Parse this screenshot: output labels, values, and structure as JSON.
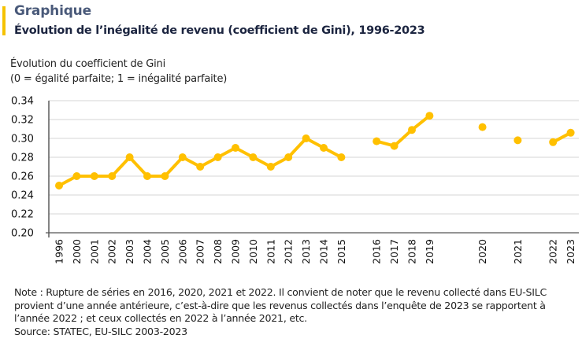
{
  "header": {
    "kicker": "Graphique",
    "title": "Évolution de l’inégalité de revenu (coefficient de Gini), 1996-2023",
    "kicker_color": "#4a5a7a",
    "title_color": "#1c2540",
    "accent_color": "#f5c200"
  },
  "y_caption": {
    "line1": "Évolution du coefficient de Gini",
    "line2": "(0 = égalité parfaite; 1 = inégalité parfaite)"
  },
  "chart_data": {
    "type": "line",
    "title": "Évolution de l’inégalité de revenu (coefficient de Gini), 1996-2023",
    "xlabel": "",
    "ylabel": "Évolution du coefficient de Gini (0 = égalité parfaite; 1 = inégalité parfaite)",
    "ylim": [
      0.2,
      0.34
    ],
    "yticks": [
      "0.20",
      "0.22",
      "0.24",
      "0.26",
      "0.28",
      "0.30",
      "0.32",
      "0.34"
    ],
    "grid": true,
    "legend": "none",
    "line_color": "#ffc000",
    "categories": [
      "1996",
      "2000",
      "2001",
      "2002",
      "2003",
      "2004",
      "2005",
      "2006",
      "2007",
      "2008",
      "2009",
      "2010",
      "2011",
      "2012",
      "2013",
      "2014",
      "2015",
      "2016",
      "2017",
      "2018",
      "2019",
      "2020",
      "2021",
      "2022",
      "2023"
    ],
    "slots": [
      0,
      1,
      2,
      3,
      4,
      5,
      6,
      7,
      8,
      9,
      10,
      11,
      12,
      13,
      14,
      15,
      16,
      18,
      19,
      20,
      21,
      24,
      26,
      28,
      29
    ],
    "series": [
      {
        "name": "Coefficient de Gini",
        "segments": [
          {
            "x": [
              "1996",
              "2000",
              "2001",
              "2002",
              "2003",
              "2004",
              "2005",
              "2006",
              "2007",
              "2008",
              "2009",
              "2010",
              "2011",
              "2012",
              "2013",
              "2014",
              "2015"
            ],
            "values": [
              0.25,
              0.26,
              0.26,
              0.26,
              0.28,
              0.26,
              0.26,
              0.28,
              0.27,
              0.28,
              0.29,
              0.28,
              0.27,
              0.28,
              0.3,
              0.29,
              0.28
            ]
          },
          {
            "x": [
              "2016",
              "2017",
              "2018",
              "2019"
            ],
            "values": [
              0.297,
              0.292,
              0.309,
              0.324
            ]
          },
          {
            "x": [
              "2020"
            ],
            "values": [
              0.312
            ]
          },
          {
            "x": [
              "2021"
            ],
            "values": [
              0.298
            ]
          },
          {
            "x": [
              "2022",
              "2023"
            ],
            "values": [
              0.296,
              0.306
            ]
          }
        ]
      }
    ]
  },
  "note": {
    "line1": "Note : Rupture de séries en 2016, 2020, 2021 et 2022. Il convient de noter que le revenu collecté dans EU-SILC",
    "line2": "provient d’une année antérieure, c’est-à-dire que les revenus collectés dans l’enquête de 2023 se rapportent à",
    "line3": "l’année 2022 ; et ceux collectés en 2022 à l’année 2021, etc.",
    "source": "Source: STATEC, EU-SILC 2003-2023"
  }
}
